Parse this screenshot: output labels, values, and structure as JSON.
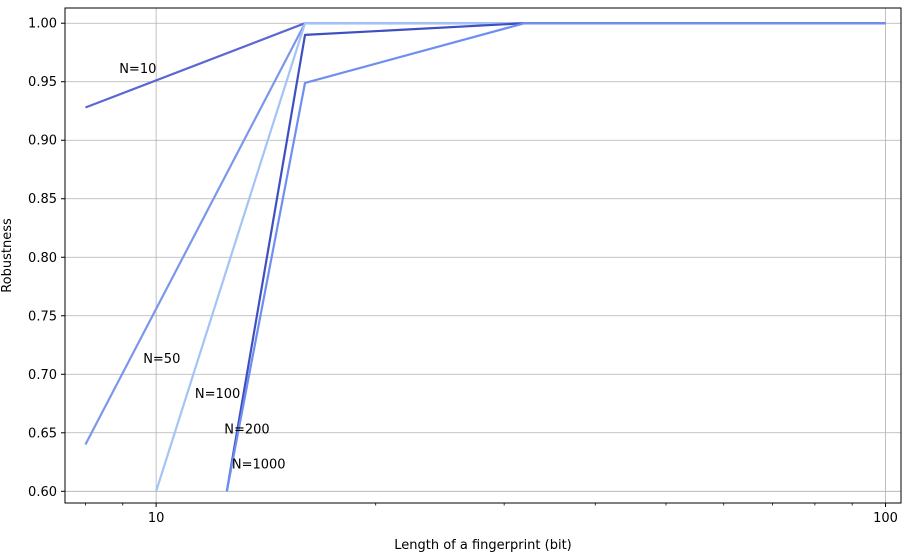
{
  "chart_data": {
    "type": "line",
    "xlabel": "Length of a fingerprint (bit)",
    "ylabel": "Robustness",
    "xscale": "log",
    "xlim": [
      7.5,
      105
    ],
    "ylim": [
      0.59,
      1.013
    ],
    "grid": true,
    "xticks": [
      10,
      100
    ],
    "xtick_labels": [
      "10",
      "100"
    ],
    "yticks": [
      0.6,
      0.65,
      0.7,
      0.75,
      0.8,
      0.85,
      0.9,
      0.95,
      1.0
    ],
    "ytick_labels": [
      "0.60",
      "0.65",
      "0.70",
      "0.75",
      "0.80",
      "0.85",
      "0.90",
      "0.95",
      "1.00"
    ],
    "series": [
      {
        "name": "N=10",
        "color": "#5b68d2",
        "label_at": [
          8.9,
          0.961
        ],
        "points": [
          [
            8,
            0.928
          ],
          [
            16,
            1.0
          ],
          [
            32,
            1.0
          ],
          [
            100,
            1.0
          ]
        ]
      },
      {
        "name": "N=50",
        "color": "#7b97ec",
        "label_at": [
          9.6,
          0.713
        ],
        "points": [
          [
            8,
            0.64
          ],
          [
            16,
            1.0
          ],
          [
            32,
            1.0
          ],
          [
            100,
            1.0
          ]
        ]
      },
      {
        "name": "N=100",
        "color": "#a3c4f6",
        "label_at": [
          11.3,
          0.683
        ],
        "points": [
          [
            10,
            0.6
          ],
          [
            16,
            1.0
          ],
          [
            32,
            1.0
          ],
          [
            100,
            1.0
          ]
        ]
      },
      {
        "name": "N=200",
        "color": "#3f4fbf",
        "label_at": [
          12.4,
          0.653
        ],
        "points": [
          [
            12.5,
            0.6
          ],
          [
            16,
            0.99
          ],
          [
            32,
            1.0
          ],
          [
            100,
            1.0
          ]
        ]
      },
      {
        "name": "N=1000",
        "color": "#6f8ff0",
        "label_at": [
          12.7,
          0.623
        ],
        "points": [
          [
            12.5,
            0.6
          ],
          [
            16,
            0.949
          ],
          [
            32,
            1.0
          ],
          [
            100,
            1.0
          ]
        ]
      }
    ]
  }
}
